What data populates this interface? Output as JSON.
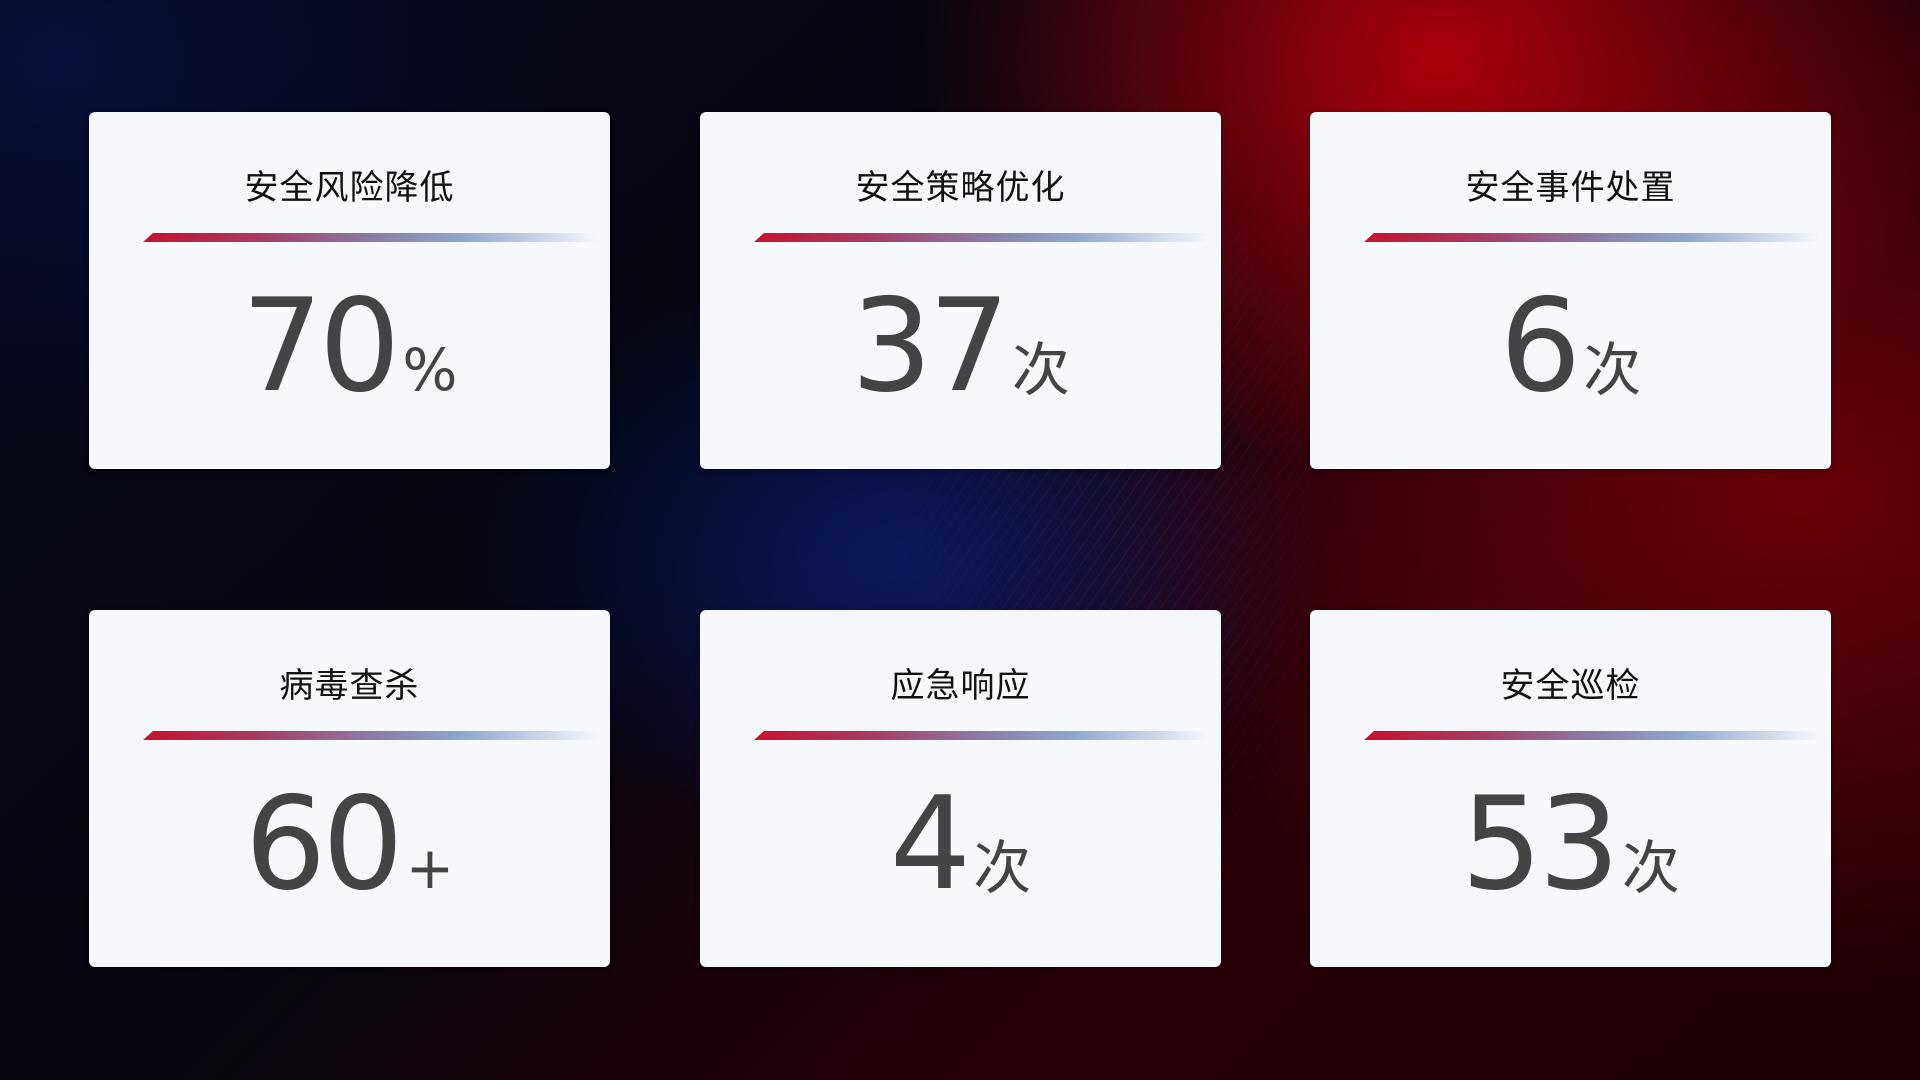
{
  "colors": {
    "accent_red": "#c8102e",
    "accent_blue": "#8fa6cf",
    "card_bg": "#f6f8fc",
    "value_text": "#444444"
  },
  "cards": [
    {
      "title": "安全风险降低",
      "value": "70",
      "unit": "%"
    },
    {
      "title": "安全策略优化",
      "value": "37",
      "unit": "次"
    },
    {
      "title": "安全事件处置",
      "value": "6",
      "unit": "次"
    },
    {
      "title": "病毒查杀",
      "value": "60",
      "unit": "+"
    },
    {
      "title": "应急响应",
      "value": "4",
      "unit": "次"
    },
    {
      "title": "安全巡检",
      "value": "53",
      "unit": "次"
    }
  ]
}
